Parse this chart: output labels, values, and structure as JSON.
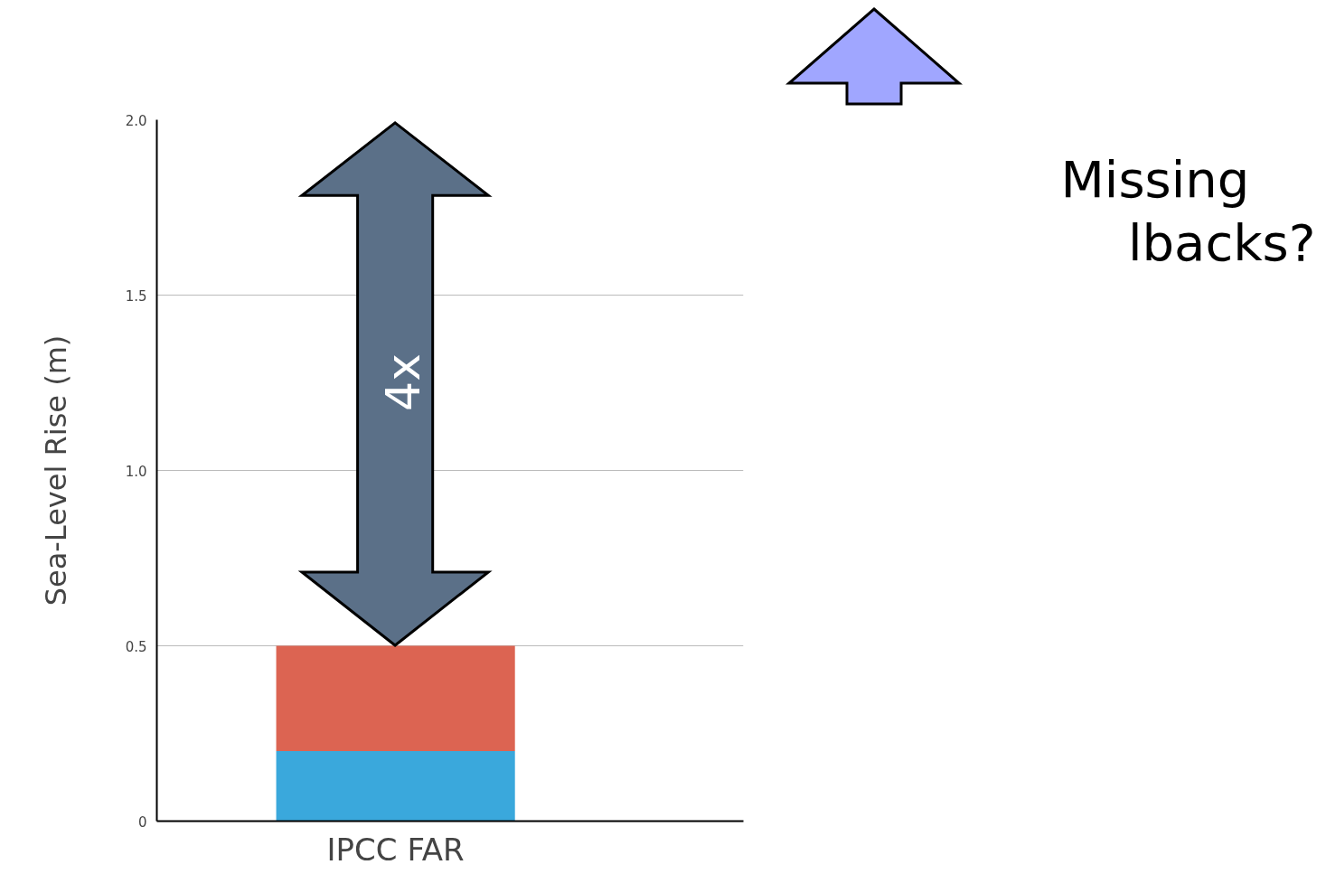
{
  "chart_data": {
    "type": "bar",
    "stacked": true,
    "categories": [
      "IPCC FAR"
    ],
    "series": [
      {
        "color": "#3aa8dc",
        "values": [
          0.2
        ]
      },
      {
        "color": "#dc6452",
        "values": [
          0.3
        ]
      }
    ],
    "ylabel": "Sea-Level Rise (m)",
    "ylim": [
      0,
      2.0
    ],
    "yticks": [
      0,
      0.5,
      {
        "value": 1.0,
        "label": "1.0"
      },
      {
        "value": 1.5,
        "label": "1.5"
      },
      {
        "value": 2.0,
        "label": "2.0"
      }
    ],
    "grid": "y",
    "annotations": [
      "4x",
      "Missing",
      "lbacks?"
    ]
  }
}
